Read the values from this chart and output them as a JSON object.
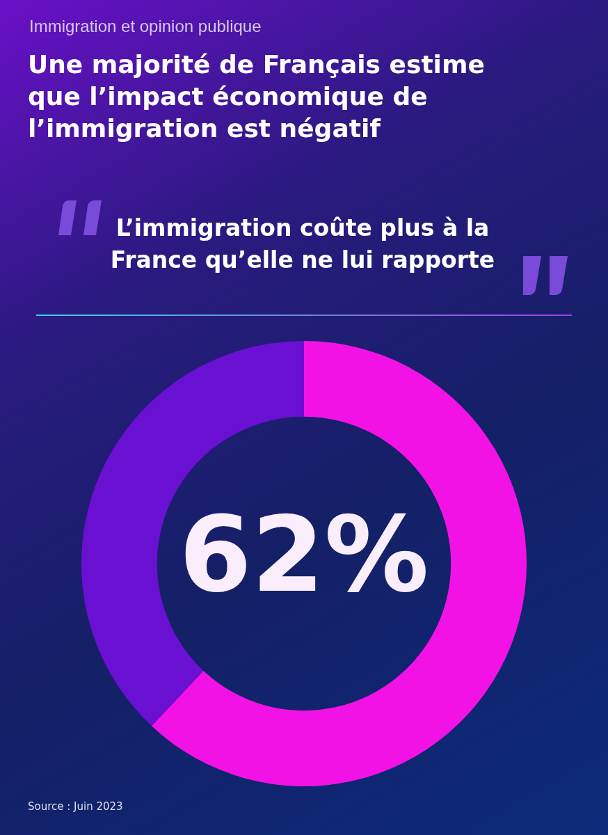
{
  "chart_data": {
    "type": "donut",
    "subtitle": "Immigration et opinion publique",
    "title": "Une majorité de Français estime que l’impact économique de l’immigration est négatif",
    "categories": [
      null,
      null
    ],
    "values": [
      62,
      38
    ],
    "colors": [
      "#f212e6",
      "#6a10d2"
    ],
    "value_labels": [
      "62%",
      null
    ],
    "legend": false,
    "annotations": [
      "L’immigration coûte plus à la France qu’elle ne lui rapporte",
      "Source : Juin 2023"
    ]
  }
}
